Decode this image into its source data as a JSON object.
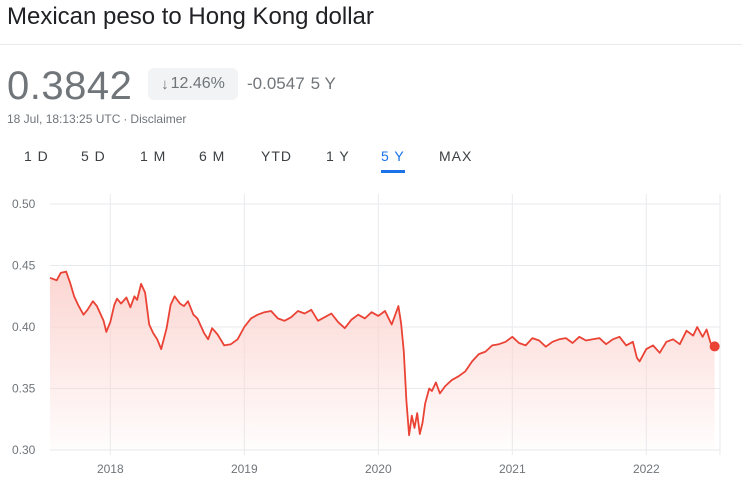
{
  "header": {
    "title": "Mexican peso to Hong Kong dollar",
    "price": "0.3842",
    "badge_arrow": "↓",
    "badge_percent": "12.46%",
    "change_value": "-0.0547",
    "change_period": "5 Y",
    "timestamp": "18 Jul, 18:13:25 UTC",
    "separator": "·",
    "disclaimer": "Disclaimer"
  },
  "tabs": [
    "1 D",
    "5 D",
    "1 M",
    "6 M",
    "YTD",
    "1 Y",
    "5 Y",
    "MAX"
  ],
  "active_tab": "5 Y",
  "colors": {
    "line": "#ea4335",
    "fill_top": "#fbd3cf",
    "grid": "#e8eaed",
    "active": "#1a73e8",
    "muted": "#70757a"
  },
  "chart_data": {
    "type": "area",
    "x_unit": "year",
    "xlim": [
      2017.55,
      2022.55
    ],
    "ylim": [
      0.3,
      0.5
    ],
    "y_ticks": [
      "0.50",
      "0.45",
      "0.40",
      "0.35",
      "0.30"
    ],
    "x_ticks": [
      "2018",
      "2019",
      "2020",
      "2021",
      "2022"
    ],
    "grid": true,
    "last_point_marker": true,
    "series": [
      {
        "x": [
          2017.55,
          2017.6,
          2017.63,
          2017.67,
          2017.7,
          2017.73,
          2017.76,
          2017.8,
          2017.83,
          2017.87,
          2017.9,
          2017.95,
          2017.97,
          2018.0,
          2018.03,
          2018.05,
          2018.08,
          2018.12,
          2018.15,
          2018.18,
          2018.2,
          2018.23,
          2018.26,
          2018.29,
          2018.32,
          2018.35,
          2018.38,
          2018.42,
          2018.45,
          2018.48,
          2018.52,
          2018.55,
          2018.58,
          2018.62,
          2018.65,
          2018.7,
          2018.73,
          2018.76,
          2018.8,
          2018.85,
          2018.9,
          2018.95,
          2019.0,
          2019.05,
          2019.1,
          2019.15,
          2019.2,
          2019.25,
          2019.3,
          2019.35,
          2019.4,
          2019.45,
          2019.5,
          2019.55,
          2019.6,
          2019.65,
          2019.7,
          2019.75,
          2019.8,
          2019.85,
          2019.9,
          2019.95,
          2020.0,
          2020.05,
          2020.1,
          2020.15,
          2020.17,
          2020.19,
          2020.21,
          2020.23,
          2020.25,
          2020.27,
          2020.29,
          2020.31,
          2020.33,
          2020.35,
          2020.38,
          2020.4,
          2020.43,
          2020.46,
          2020.5,
          2020.55,
          2020.6,
          2020.65,
          2020.7,
          2020.75,
          2020.8,
          2020.85,
          2020.9,
          2020.95,
          2021.0,
          2021.05,
          2021.1,
          2021.15,
          2021.2,
          2021.25,
          2021.3,
          2021.35,
          2021.4,
          2021.45,
          2021.5,
          2021.55,
          2021.6,
          2021.65,
          2021.7,
          2021.75,
          2021.8,
          2021.85,
          2021.9,
          2021.93,
          2021.95,
          2022.0,
          2022.05,
          2022.1,
          2022.15,
          2022.2,
          2022.25,
          2022.3,
          2022.35,
          2022.38,
          2022.42,
          2022.45,
          2022.48,
          2022.51
        ],
        "y": [
          0.44,
          0.438,
          0.444,
          0.445,
          0.436,
          0.425,
          0.418,
          0.41,
          0.414,
          0.421,
          0.417,
          0.405,
          0.396,
          0.404,
          0.418,
          0.423,
          0.419,
          0.424,
          0.416,
          0.425,
          0.422,
          0.435,
          0.428,
          0.402,
          0.395,
          0.39,
          0.382,
          0.399,
          0.418,
          0.425,
          0.419,
          0.417,
          0.421,
          0.41,
          0.407,
          0.395,
          0.39,
          0.399,
          0.394,
          0.385,
          0.386,
          0.39,
          0.4,
          0.407,
          0.41,
          0.412,
          0.413,
          0.407,
          0.405,
          0.408,
          0.413,
          0.411,
          0.414,
          0.405,
          0.408,
          0.411,
          0.404,
          0.399,
          0.406,
          0.41,
          0.407,
          0.412,
          0.409,
          0.413,
          0.402,
          0.417,
          0.403,
          0.38,
          0.34,
          0.312,
          0.328,
          0.318,
          0.33,
          0.313,
          0.322,
          0.338,
          0.35,
          0.348,
          0.355,
          0.346,
          0.352,
          0.357,
          0.36,
          0.364,
          0.372,
          0.378,
          0.38,
          0.385,
          0.386,
          0.388,
          0.392,
          0.387,
          0.385,
          0.391,
          0.389,
          0.384,
          0.388,
          0.39,
          0.391,
          0.387,
          0.392,
          0.389,
          0.39,
          0.391,
          0.386,
          0.39,
          0.392,
          0.385,
          0.388,
          0.375,
          0.372,
          0.382,
          0.385,
          0.379,
          0.388,
          0.39,
          0.386,
          0.397,
          0.393,
          0.4,
          0.392,
          0.398,
          0.387,
          0.3842
        ]
      }
    ]
  }
}
